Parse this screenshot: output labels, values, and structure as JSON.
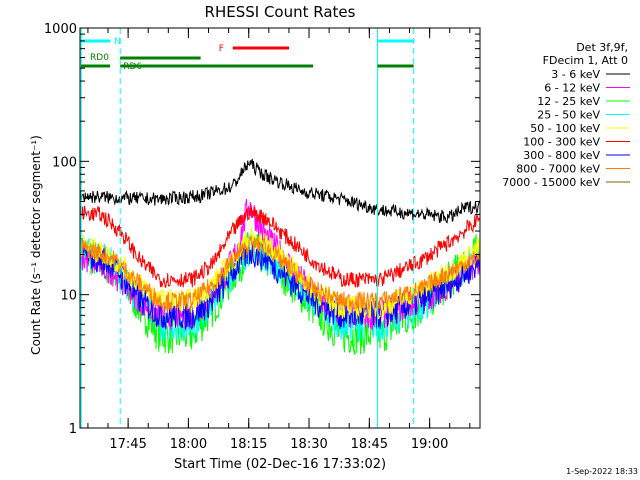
{
  "chart_data": {
    "type": "line",
    "title": "RHESSI Count Rates",
    "xlabel": "Start Time (02-Dec-16 17:33:02)",
    "ylabel": "Count Rate (s⁻¹ detector segment⁻¹)",
    "yscale": "log",
    "ylim": [
      1,
      1000
    ],
    "xlim_minutes_after_start": [
      0,
      99.5
    ],
    "x_ticks": [
      {
        "label": "17:45",
        "t": 11.97
      },
      {
        "label": "18:00",
        "t": 26.97
      },
      {
        "label": "18:15",
        "t": 41.97
      },
      {
        "label": "18:30",
        "t": 56.97
      },
      {
        "label": "18:45",
        "t": 71.97
      },
      {
        "label": "19:00",
        "t": 86.97
      }
    ],
    "y_ticks": [
      {
        "label": "1",
        "v": 1
      },
      {
        "label": "10",
        "v": 10
      },
      {
        "label": "100",
        "v": 100
      },
      {
        "label": "1000",
        "v": 1000
      }
    ],
    "legend_header": [
      "Det 3f,9f,",
      "FDecim 1, Att 0"
    ],
    "series": [
      {
        "name": "3 - 6 keV",
        "color": "#000000",
        "points": [
          [
            0,
            55
          ],
          [
            10,
            53
          ],
          [
            20,
            52
          ],
          [
            30,
            55
          ],
          [
            38,
            65
          ],
          [
            42,
            98
          ],
          [
            46,
            78
          ],
          [
            55,
            60
          ],
          [
            65,
            52
          ],
          [
            75,
            43
          ],
          [
            85,
            40
          ],
          [
            92,
            38
          ],
          [
            96,
            45
          ],
          [
            99,
            46
          ]
        ]
      },
      {
        "name": "6 - 12 keV",
        "color": "#ff00ff",
        "points": [
          [
            0,
            19
          ],
          [
            8,
            15
          ],
          [
            15,
            9
          ],
          [
            20,
            7
          ],
          [
            28,
            7
          ],
          [
            33,
            10
          ],
          [
            38,
            18
          ],
          [
            40,
            28
          ],
          [
            42,
            48
          ],
          [
            46,
            28
          ],
          [
            52,
            17
          ],
          [
            58,
            10
          ],
          [
            65,
            7
          ],
          [
            75,
            7
          ],
          [
            85,
            9
          ],
          [
            92,
            12
          ],
          [
            99,
            18
          ]
        ]
      },
      {
        "name": "12 - 25 keV",
        "color": "#00ff00",
        "points": [
          [
            0,
            21
          ],
          [
            8,
            16
          ],
          [
            15,
            8
          ],
          [
            20,
            5
          ],
          [
            28,
            5
          ],
          [
            33,
            8
          ],
          [
            38,
            14
          ],
          [
            42,
            22
          ],
          [
            46,
            19
          ],
          [
            52,
            13
          ],
          [
            58,
            8
          ],
          [
            65,
            5
          ],
          [
            75,
            5
          ],
          [
            85,
            8
          ],
          [
            92,
            13
          ],
          [
            99,
            21
          ]
        ]
      },
      {
        "name": "25 - 50 keV",
        "color": "#00ffff",
        "points": [
          [
            0,
            22
          ],
          [
            8,
            17
          ],
          [
            15,
            9
          ],
          [
            20,
            6
          ],
          [
            28,
            6
          ],
          [
            33,
            9
          ],
          [
            38,
            15
          ],
          [
            42,
            22
          ],
          [
            46,
            20
          ],
          [
            52,
            14
          ],
          [
            58,
            9
          ],
          [
            65,
            6
          ],
          [
            75,
            6
          ],
          [
            85,
            8
          ],
          [
            92,
            13
          ],
          [
            99,
            21
          ]
        ]
      },
      {
        "name": "50 - 100 keV",
        "color": "#ffff00",
        "points": [
          [
            0,
            24
          ],
          [
            8,
            19
          ],
          [
            15,
            12
          ],
          [
            20,
            9
          ],
          [
            28,
            9
          ],
          [
            33,
            12
          ],
          [
            38,
            18
          ],
          [
            42,
            27
          ],
          [
            46,
            24
          ],
          [
            52,
            17
          ],
          [
            58,
            11
          ],
          [
            65,
            8
          ],
          [
            75,
            8
          ],
          [
            85,
            11
          ],
          [
            92,
            15
          ],
          [
            99,
            22
          ]
        ]
      },
      {
        "name": "100 - 300 keV",
        "color": "#ff0000",
        "points": [
          [
            0,
            41
          ],
          [
            5,
            40
          ],
          [
            10,
            30
          ],
          [
            15,
            18
          ],
          [
            20,
            13
          ],
          [
            28,
            13
          ],
          [
            33,
            17
          ],
          [
            38,
            30
          ],
          [
            42,
            42
          ],
          [
            46,
            38
          ],
          [
            52,
            26
          ],
          [
            58,
            18
          ],
          [
            65,
            13
          ],
          [
            75,
            13
          ],
          [
            85,
            18
          ],
          [
            92,
            25
          ],
          [
            99,
            36
          ]
        ]
      },
      {
        "name": "300 - 800 keV",
        "color": "#0000ff",
        "points": [
          [
            0,
            21
          ],
          [
            8,
            17
          ],
          [
            15,
            9
          ],
          [
            20,
            7
          ],
          [
            28,
            7
          ],
          [
            33,
            9
          ],
          [
            38,
            15
          ],
          [
            42,
            21
          ],
          [
            46,
            19
          ],
          [
            52,
            13
          ],
          [
            58,
            9
          ],
          [
            65,
            7
          ],
          [
            75,
            7
          ],
          [
            85,
            9
          ],
          [
            92,
            12
          ],
          [
            99,
            17
          ]
        ]
      },
      {
        "name": "800 - 7000 keV",
        "color": "#ff8000",
        "points": [
          [
            0,
            23
          ],
          [
            8,
            19
          ],
          [
            15,
            12
          ],
          [
            20,
            9
          ],
          [
            28,
            9
          ],
          [
            33,
            12
          ],
          [
            38,
            18
          ],
          [
            42,
            24
          ],
          [
            46,
            23
          ],
          [
            52,
            16
          ],
          [
            58,
            11
          ],
          [
            65,
            9
          ],
          [
            75,
            9
          ],
          [
            85,
            11
          ],
          [
            92,
            15
          ],
          [
            99,
            19
          ]
        ]
      },
      {
        "name": "7000 - 15000 keV",
        "color": "#806000",
        "points": []
      }
    ],
    "attenuator_bars": [
      {
        "label": "N",
        "color": "#00ffff",
        "ranges": [
          [
            0.3,
            7.5
          ],
          [
            74,
            83
          ]
        ]
      },
      {
        "label": "F",
        "color": "#ff0000",
        "ranges": [
          [
            38,
            52
          ]
        ]
      },
      {
        "label": "RD0",
        "color": "#008000",
        "ranges": [
          [
            10,
            30
          ]
        ]
      },
      {
        "label": "RD6",
        "color": "#008000",
        "ranges": [
          [
            0.3,
            7.5
          ],
          [
            10,
            58
          ],
          [
            74,
            83
          ]
        ]
      }
    ],
    "eclipse_lines_solid": [
      0.3,
      74
    ],
    "eclipse_lines_dashed": [
      10,
      83
    ],
    "grid": false
  },
  "footer_date": "1-Sep-2022 18:33"
}
